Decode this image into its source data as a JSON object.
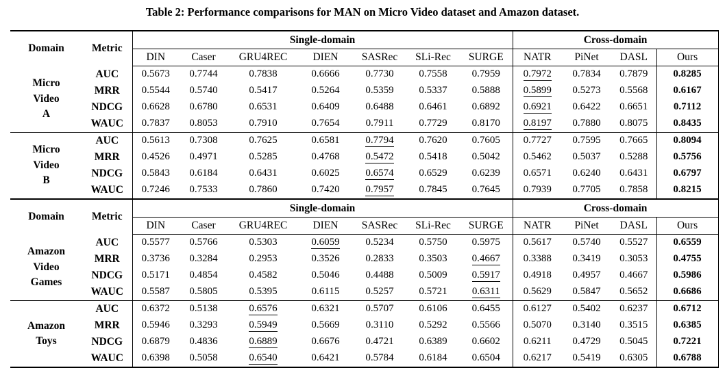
{
  "table_caption": "Table 2: Performance comparisons for MAN on Micro Video dataset and Amazon dataset.",
  "columns": {
    "domain_label": "Domain",
    "metric_label": "Metric",
    "single_domain_label": "Single-domain",
    "cross_domain_label": "Cross-domain",
    "single_domain_methods": [
      "DIN",
      "Caser",
      "GRU4REC",
      "DIEN",
      "SASRec",
      "SLi-Rec",
      "SURGE"
    ],
    "cross_domain_methods": [
      "NATR",
      "PiNet",
      "DASL"
    ],
    "ours_label": "Ours"
  },
  "sections": [
    {
      "groups": [
        {
          "domain": "Micro Video A",
          "rows": [
            {
              "metric": "AUC",
              "values": [
                "0.5673",
                "0.7744",
                "0.7838",
                "0.6666",
                "0.7730",
                "0.7558",
                "0.7959",
                "0.7972",
                "0.7834",
                "0.7879",
                "0.8285"
              ],
              "underline_col": 7
            },
            {
              "metric": "MRR",
              "values": [
                "0.5544",
                "0.5740",
                "0.5417",
                "0.5264",
                "0.5359",
                "0.5337",
                "0.5888",
                "0.5899",
                "0.5273",
                "0.5568",
                "0.6167"
              ],
              "underline_col": 7
            },
            {
              "metric": "NDCG",
              "values": [
                "0.6628",
                "0.6780",
                "0.6531",
                "0.6409",
                "0.6488",
                "0.6461",
                "0.6892",
                "0.6921",
                "0.6422",
                "0.6651",
                "0.7112"
              ],
              "underline_col": 7
            },
            {
              "metric": "WAUC",
              "values": [
                "0.7837",
                "0.8053",
                "0.7910",
                "0.7654",
                "0.7911",
                "0.7729",
                "0.8170",
                "0.8197",
                "0.7880",
                "0.8075",
                "0.8435"
              ],
              "underline_col": 7
            }
          ]
        },
        {
          "domain": "Micro Video B",
          "rows": [
            {
              "metric": "AUC",
              "values": [
                "0.5613",
                "0.7308",
                "0.7625",
                "0.6581",
                "0.7794",
                "0.7620",
                "0.7605",
                "0.7727",
                "0.7595",
                "0.7665",
                "0.8094"
              ],
              "underline_col": 4
            },
            {
              "metric": "MRR",
              "values": [
                "0.4526",
                "0.4971",
                "0.5285",
                "0.4768",
                "0.5472",
                "0.5418",
                "0.5042",
                "0.5462",
                "0.5037",
                "0.5288",
                "0.5756"
              ],
              "underline_col": 4
            },
            {
              "metric": "NDCG",
              "values": [
                "0.5843",
                "0.6184",
                "0.6431",
                "0.6025",
                "0.6574",
                "0.6529",
                "0.6239",
                "0.6571",
                "0.6240",
                "0.6431",
                "0.6797"
              ],
              "underline_col": 4
            },
            {
              "metric": "WAUC",
              "values": [
                "0.7246",
                "0.7533",
                "0.7860",
                "0.7420",
                "0.7957",
                "0.7845",
                "0.7645",
                "0.7939",
                "0.7705",
                "0.7858",
                "0.8215"
              ],
              "underline_col": 4
            }
          ]
        }
      ]
    },
    {
      "groups": [
        {
          "domain": "Amazon Video Games",
          "rows": [
            {
              "metric": "AUC",
              "values": [
                "0.5577",
                "0.5766",
                "0.5303",
                "0.6059",
                "0.5234",
                "0.5750",
                "0.5975",
                "0.5617",
                "0.5740",
                "0.5527",
                "0.6559"
              ],
              "underline_col": 3
            },
            {
              "metric": "MRR",
              "values": [
                "0.3736",
                "0.3284",
                "0.2953",
                "0.3526",
                "0.2833",
                "0.3503",
                "0.4667",
                "0.3388",
                "0.3419",
                "0.3053",
                "0.4755"
              ],
              "underline_col": 6
            },
            {
              "metric": "NDCG",
              "values": [
                "0.5171",
                "0.4854",
                "0.4582",
                "0.5046",
                "0.4488",
                "0.5009",
                "0.5917",
                "0.4918",
                "0.4957",
                "0.4667",
                "0.5986"
              ],
              "underline_col": 6
            },
            {
              "metric": "WAUC",
              "values": [
                "0.5587",
                "0.5805",
                "0.5395",
                "0.6115",
                "0.5257",
                "0.5721",
                "0.6311",
                "0.5629",
                "0.5847",
                "0.5652",
                "0.6686"
              ],
              "underline_col": 6
            }
          ]
        },
        {
          "domain": "Amazon Toys",
          "rows": [
            {
              "metric": "AUC",
              "values": [
                "0.6372",
                "0.5138",
                "0.6576",
                "0.6321",
                "0.5707",
                "0.6106",
                "0.6455",
                "0.6127",
                "0.5402",
                "0.6237",
                "0.6712"
              ],
              "underline_col": 2
            },
            {
              "metric": "MRR",
              "values": [
                "0.5946",
                "0.3293",
                "0.5949",
                "0.5669",
                "0.3110",
                "0.5292",
                "0.5566",
                "0.5070",
                "0.3140",
                "0.3515",
                "0.6385"
              ],
              "underline_col": 2
            },
            {
              "metric": "NDCG",
              "values": [
                "0.6879",
                "0.4836",
                "0.6889",
                "0.6676",
                "0.4721",
                "0.6389",
                "0.6602",
                "0.6211",
                "0.4729",
                "0.5045",
                "0.7221"
              ],
              "underline_col": 2
            },
            {
              "metric": "WAUC",
              "values": [
                "0.6398",
                "0.5058",
                "0.6540",
                "0.6421",
                "0.5784",
                "0.6184",
                "0.6504",
                "0.6217",
                "0.5419",
                "0.6305",
                "0.6788"
              ],
              "underline_col": 2
            }
          ]
        }
      ]
    }
  ]
}
